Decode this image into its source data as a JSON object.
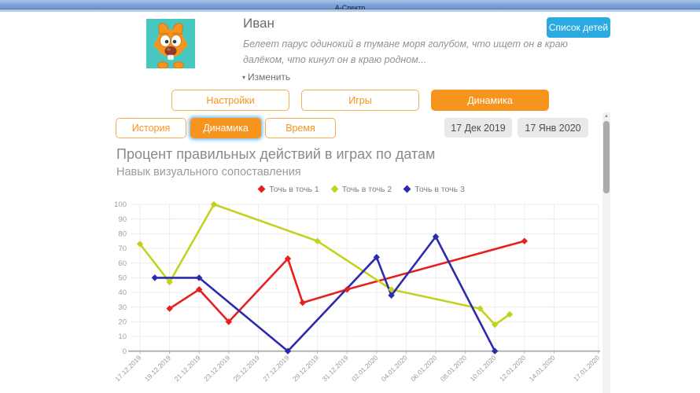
{
  "titlebar": {
    "title": "А-Спектр"
  },
  "profile": {
    "name": "Иван",
    "description": "Белеет парус одинокий в тумане моря голубом, что ищет он в краю далёком, что кинул он в краю родном...",
    "edit_label": "Изменить",
    "children_list_button": "Список детей"
  },
  "icons": {
    "edit_caret": "▾",
    "scroll_up_arrow": "▲"
  },
  "tabs": {
    "main": [
      {
        "label": "Настройки",
        "active": false
      },
      {
        "label": "Игры",
        "active": false
      },
      {
        "label": "Динамика",
        "active": true
      }
    ],
    "sub": [
      {
        "label": "История",
        "active": false
      },
      {
        "label": "Динамика",
        "active": true
      },
      {
        "label": "Время",
        "active": false
      }
    ]
  },
  "date_range": {
    "from": "17 Дек 2019",
    "to": "17 Янв 2020"
  },
  "colors": {
    "accent_orange": "#f7941e",
    "button_blue": "#29abe2",
    "titlebar_blue": "#7ca3d6",
    "avatar_background": "#46c8c0"
  },
  "chart_data": {
    "type": "line",
    "title": "Процент правильных действий в играх по датам",
    "subtitle": "Навык визуального сопоставления",
    "ylim": [
      0,
      100
    ],
    "y_tick_step": 10,
    "x_start": "17.12.2019",
    "x_end": "17.01.2020",
    "x_tick_labels": [
      "17.12.2019",
      "19.12.2019",
      "21.12.2019",
      "23.12.2019",
      "25.12.2019",
      "27.12.2019",
      "29.12.2019",
      "31.12.2019",
      "02.01.2020",
      "04.01.2020",
      "06.01.2020",
      "08.01.2020",
      "10.01.2020",
      "12.01.2020",
      "14.01.2020",
      "17.01.2020"
    ],
    "grid": true,
    "legend_position": "top",
    "marker": "diamond",
    "series": [
      {
        "name": "Точь в точь 1",
        "color": "#e6201f",
        "points": [
          [
            "19.12.2019",
            29
          ],
          [
            "21.12.2019",
            42
          ],
          [
            "23.12.2019",
            20
          ],
          [
            "27.12.2019",
            63
          ],
          [
            "28.12.2019",
            33
          ],
          [
            "31.12.2019",
            42
          ],
          [
            "12.01.2020",
            75
          ]
        ]
      },
      {
        "name": "Точь в точь 2",
        "color": "#c3d21f",
        "points": [
          [
            "17.12.2019",
            73
          ],
          [
            "19.12.2019",
            47
          ],
          [
            "22.12.2019",
            100
          ],
          [
            "29.12.2019",
            75
          ],
          [
            "03.01.2020",
            42
          ],
          [
            "09.01.2020",
            29
          ],
          [
            "10.01.2020",
            18
          ],
          [
            "11.01.2020",
            25
          ]
        ]
      },
      {
        "name": "Точь в точь 3",
        "color": "#2b2bad",
        "points": [
          [
            "18.12.2019",
            50
          ],
          [
            "21.12.2019",
            50
          ],
          [
            "27.12.2019",
            0
          ],
          [
            "02.01.2020",
            64
          ],
          [
            "03.01.2020",
            38
          ],
          [
            "06.01.2020",
            78
          ],
          [
            "10.01.2020",
            0
          ]
        ]
      }
    ]
  }
}
